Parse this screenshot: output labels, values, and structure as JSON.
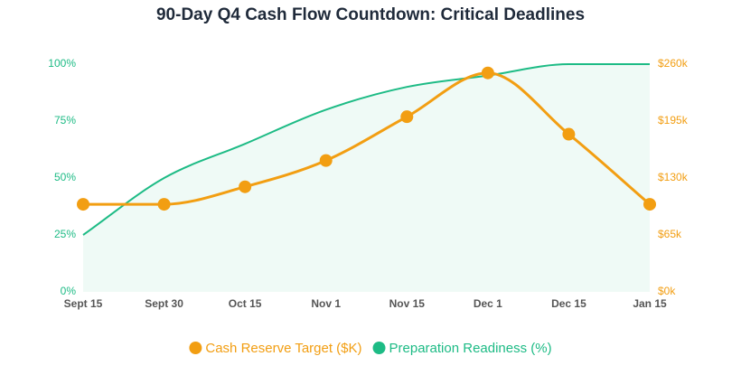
{
  "chart_data": {
    "type": "line",
    "title": "90-Day Q4 Cash Flow Countdown: Critical Deadlines",
    "categories": [
      "Sept 15",
      "Sept 30",
      "Oct 15",
      "Nov 1",
      "Nov 15",
      "Dec 1",
      "Dec 15",
      "Jan 15"
    ],
    "series": [
      {
        "name": "Cash Reserve Target ($K)",
        "color": "#f29e12",
        "axis": "y2",
        "markers": true,
        "values": [
          100,
          100,
          120,
          150,
          200,
          250,
          180,
          100
        ]
      },
      {
        "name": "Preparation Readiness (%)",
        "color": "#1dbb85",
        "axis": "y",
        "fill": true,
        "values": [
          25,
          50,
          65,
          80,
          90,
          95,
          100,
          100
        ]
      }
    ],
    "ylim": [
      0,
      100
    ],
    "yticks": [
      {
        "value": 0,
        "label": "0%"
      },
      {
        "value": 25,
        "label": "25%"
      },
      {
        "value": 50,
        "label": "50%"
      },
      {
        "value": 75,
        "label": "75%"
      },
      {
        "value": 100,
        "label": "100%"
      }
    ],
    "y2lim": [
      0,
      260
    ],
    "y2ticks": [
      {
        "value": 0,
        "label": "$0k"
      },
      {
        "value": 65,
        "label": "$65k"
      },
      {
        "value": 130,
        "label": "$130k"
      },
      {
        "value": 195,
        "label": "$195k"
      },
      {
        "value": 260,
        "label": "$260k"
      }
    ],
    "legend": "bottom"
  }
}
